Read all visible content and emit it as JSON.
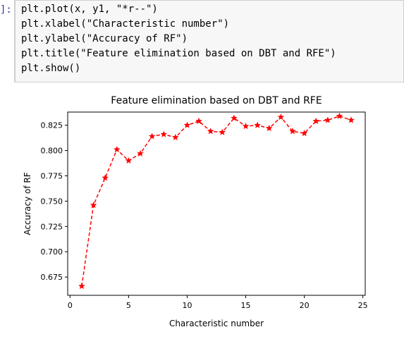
{
  "notebook": {
    "prompt": "]:",
    "code_lines": [
      "plt.plot(x, y1, \"*r--\")",
      "plt.xlabel(\"Characteristic number\")",
      "plt.ylabel(\"Accuracy of RF\")",
      "plt.title(\"Feature elimination based on DBT and RFE\")",
      "plt.show()"
    ]
  },
  "chart_data": {
    "type": "line",
    "title": "Feature elimination based on DBT and RFE",
    "xlabel": "Characteristic number",
    "ylabel": "Accuracy of RF",
    "xlim": [
      -0.2,
      25.2
    ],
    "ylim": [
      0.657,
      0.838
    ],
    "xticks": [
      0,
      5,
      10,
      15,
      20,
      25
    ],
    "xtick_labels": [
      "0",
      "5",
      "10",
      "15",
      "20",
      "25"
    ],
    "yticks": [
      0.675,
      0.7,
      0.725,
      0.75,
      0.775,
      0.8,
      0.825
    ],
    "ytick_labels": [
      "0.675",
      "0.700",
      "0.725",
      "0.750",
      "0.775",
      "0.800",
      "0.825"
    ],
    "grid": false,
    "color": "#ff0000",
    "marker": "star",
    "linestyle": "dashed",
    "series": [
      {
        "x": [
          1,
          2,
          3,
          4,
          5,
          6,
          7,
          8,
          9,
          10,
          11,
          12,
          13,
          14,
          15,
          16,
          17,
          18,
          19,
          20,
          21,
          22,
          23,
          24
        ],
        "values": [
          0.666,
          0.746,
          0.773,
          0.801,
          0.79,
          0.797,
          0.814,
          0.816,
          0.813,
          0.825,
          0.829,
          0.819,
          0.818,
          0.832,
          0.824,
          0.825,
          0.822,
          0.833,
          0.819,
          0.817,
          0.829,
          0.83,
          0.834,
          0.83
        ]
      }
    ]
  }
}
